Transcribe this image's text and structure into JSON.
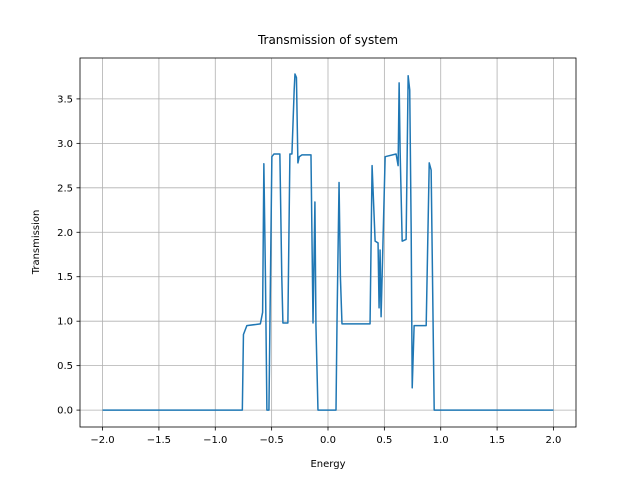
{
  "chart_data": {
    "type": "line",
    "title": "Transmission of system",
    "x_label": "Energy",
    "y_label": "Transmission",
    "x": [
      -2.0,
      -0.76,
      -0.75,
      -0.72,
      -0.6,
      -0.58,
      -0.569,
      -0.555,
      -0.542,
      -0.524,
      -0.498,
      -0.48,
      -0.427,
      -0.41,
      -0.4,
      -0.356,
      -0.338,
      -0.32,
      -0.3,
      -0.293,
      -0.28,
      -0.267,
      -0.255,
      -0.231,
      -0.151,
      -0.133,
      -0.116,
      -0.107,
      -0.089,
      0.071,
      0.08,
      0.098,
      0.11,
      0.124,
      0.373,
      0.391,
      0.418,
      0.444,
      0.453,
      0.462,
      0.471,
      0.507,
      0.604,
      0.622,
      0.631,
      0.64,
      0.658,
      0.693,
      0.711,
      0.725,
      0.738,
      0.747,
      0.764,
      0.871,
      0.898,
      0.915,
      0.942,
      2.0
    ],
    "values": [
      0,
      0,
      0.85,
      0.95,
      0.97,
      1.1,
      2.77,
      1.5,
      0,
      0,
      2.85,
      2.88,
      2.88,
      1.5,
      0.98,
      0.98,
      2.88,
      2.88,
      3.6,
      3.78,
      3.74,
      2.78,
      2.85,
      2.87,
      2.87,
      0.98,
      2.34,
      0.95,
      0,
      0,
      1.0,
      2.56,
      1.5,
      0.97,
      0.97,
      2.75,
      1.9,
      1.88,
      1.15,
      1.8,
      1.05,
      2.85,
      2.88,
      2.75,
      3.68,
      2.9,
      1.9,
      1.92,
      3.76,
      3.6,
      2.0,
      0.25,
      0.95,
      0.95,
      2.78,
      2.7,
      0,
      0
    ],
    "color": "#1f77b4",
    "xlim": [
      -2.2,
      2.2
    ],
    "ylim": [
      -0.19,
      3.96
    ],
    "xticks": [
      {
        "value": -2.0,
        "label": "−2.0"
      },
      {
        "value": -1.5,
        "label": "−1.5"
      },
      {
        "value": -1.0,
        "label": "−1.0"
      },
      {
        "value": -0.5,
        "label": "−0.5"
      },
      {
        "value": 0,
        "label": "0.0"
      },
      {
        "value": 0.5,
        "label": "0.5"
      },
      {
        "value": 1.0,
        "label": "1.0"
      },
      {
        "value": 1.5,
        "label": "1.5"
      },
      {
        "value": 2.0,
        "label": "2.0"
      }
    ],
    "yticks": [
      {
        "value": 0,
        "label": "0.0"
      },
      {
        "value": 0.5,
        "label": "0.5"
      },
      {
        "value": 1.0,
        "label": "1.0"
      },
      {
        "value": 1.5,
        "label": "1.5"
      },
      {
        "value": 2.0,
        "label": "2.0"
      },
      {
        "value": 2.5,
        "label": "2.5"
      },
      {
        "value": 3.0,
        "label": "3.0"
      },
      {
        "value": 3.5,
        "label": "3.5"
      }
    ],
    "grid": true
  }
}
